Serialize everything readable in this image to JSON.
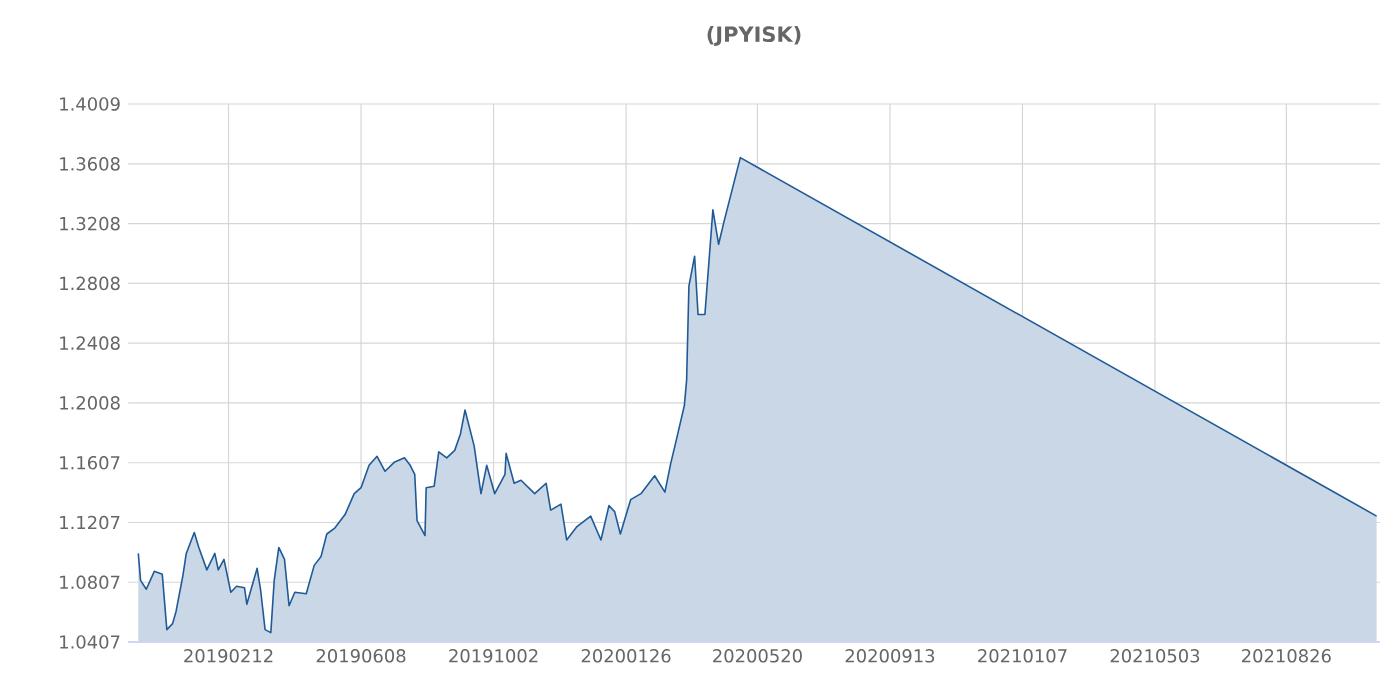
{
  "chart_data": {
    "type": "area",
    "title": "(JPYISK)",
    "xlim": [
      "2018-11-16",
      "2021-11-16"
    ],
    "xticks": [
      {
        "value": "2019-02-12",
        "label": "20190212"
      },
      {
        "value": "2019-06-08",
        "label": "20190608"
      },
      {
        "value": "2019-10-02",
        "label": "20191002"
      },
      {
        "value": "2020-01-26",
        "label": "20200126"
      },
      {
        "value": "2020-05-20",
        "label": "20200520"
      },
      {
        "value": "2020-09-13",
        "label": "20200913"
      },
      {
        "value": "2021-01-07",
        "label": "20210107"
      },
      {
        "value": "2021-05-03",
        "label": "20210503"
      },
      {
        "value": "2021-08-26",
        "label": "20210826"
      }
    ],
    "ylim": [
      1.0407,
      1.4009
    ],
    "yticks": [
      1.0407,
      1.0807,
      1.1207,
      1.1607,
      1.2008,
      1.2408,
      1.2808,
      1.3208,
      1.3608,
      1.4009
    ],
    "grid": true,
    "series": [
      {
        "color": "#1f5a96",
        "x": [
          "2018-11-25",
          "2018-11-27",
          "2018-12-02",
          "2018-12-09",
          "2018-12-16",
          "2018-12-20",
          "2018-12-25",
          "2018-12-28",
          "2019-01-03",
          "2019-01-06",
          "2019-01-13",
          "2019-01-17",
          "2019-01-24",
          "2019-01-31",
          "2019-02-03",
          "2019-02-08",
          "2019-02-14",
          "2019-02-19",
          "2019-02-26",
          "2019-02-28",
          "2019-03-09",
          "2019-03-12",
          "2019-03-16",
          "2019-03-21",
          "2019-03-24",
          "2019-03-28",
          "2019-04-02",
          "2019-04-06",
          "2019-04-11",
          "2019-04-21",
          "2019-04-28",
          "2019-05-04",
          "2019-05-09",
          "2019-05-16",
          "2019-05-25",
          "2019-06-02",
          "2019-06-08",
          "2019-06-15",
          "2019-06-22",
          "2019-06-29",
          "2019-07-07",
          "2019-07-16",
          "2019-07-21",
          "2019-07-25",
          "2019-07-27",
          "2019-08-03",
          "2019-08-04",
          "2019-08-11",
          "2019-08-15",
          "2019-08-22",
          "2019-08-29",
          "2019-09-03",
          "2019-09-07",
          "2019-09-15",
          "2019-09-21",
          "2019-09-26",
          "2019-10-03",
          "2019-10-12",
          "2019-10-13",
          "2019-10-20",
          "2019-10-26",
          "2019-11-07",
          "2019-11-17",
          "2019-11-21",
          "2019-11-30",
          "2019-12-05",
          "2019-12-14",
          "2019-12-26",
          "2020-01-04",
          "2020-01-11",
          "2020-01-16",
          "2020-01-21",
          "2020-01-30",
          "2020-02-08",
          "2020-02-20",
          "2020-02-29",
          "2020-03-05",
          "2020-03-10",
          "2020-03-17",
          "2020-03-19",
          "2020-03-21",
          "2020-03-26",
          "2020-03-29",
          "2020-04-04",
          "2020-04-11",
          "2020-04-16",
          "2020-04-21",
          "2020-05-05",
          "2021-11-13"
        ],
        "values": [
          1.1,
          1.082,
          1.076,
          1.088,
          1.086,
          1.049,
          1.053,
          1.061,
          1.085,
          1.1,
          1.114,
          1.104,
          1.089,
          1.1,
          1.089,
          1.096,
          1.074,
          1.078,
          1.077,
          1.066,
          1.09,
          1.076,
          1.049,
          1.047,
          1.082,
          1.104,
          1.096,
          1.065,
          1.074,
          1.073,
          1.092,
          1.098,
          1.113,
          1.117,
          1.126,
          1.14,
          1.144,
          1.159,
          1.165,
          1.155,
          1.161,
          1.164,
          1.159,
          1.153,
          1.122,
          1.112,
          1.144,
          1.145,
          1.168,
          1.164,
          1.169,
          1.18,
          1.196,
          1.172,
          1.14,
          1.159,
          1.14,
          1.153,
          1.167,
          1.147,
          1.149,
          1.14,
          1.147,
          1.129,
          1.133,
          1.109,
          1.118,
          1.125,
          1.109,
          1.132,
          1.128,
          1.113,
          1.136,
          1.14,
          1.152,
          1.141,
          1.16,
          1.176,
          1.199,
          1.216,
          1.279,
          1.299,
          1.26,
          1.26,
          1.33,
          1.307,
          1.323,
          1.365,
          1.125
        ]
      }
    ]
  }
}
